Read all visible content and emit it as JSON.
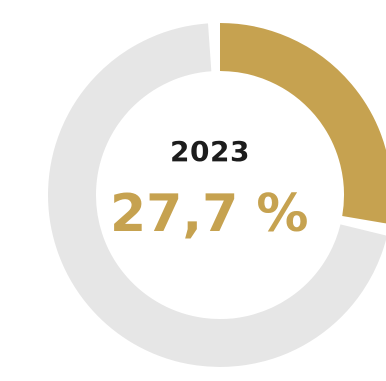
{
  "colors": {
    "track": "#e6e6e6",
    "accent": "#c6a250",
    "year_text": "#1c1c1c"
  },
  "center": {
    "year": "2023",
    "value": "27,7 %"
  },
  "chart_data": {
    "type": "pie",
    "subtype": "donut",
    "year": "2023",
    "categories": [
      "2023",
      "rest"
    ],
    "values": [
      27.7,
      72.3
    ],
    "unit": "%",
    "data_label": "27,7 %"
  }
}
